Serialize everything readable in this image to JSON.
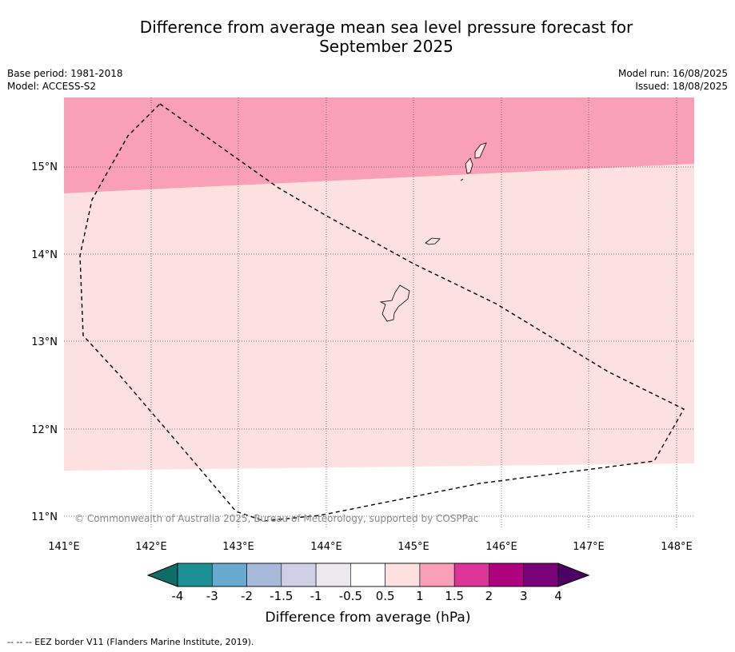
{
  "title_line1": "Difference from average mean sea level pressure forecast for",
  "title_line2": "September 2025",
  "base_period": "Base period: 1981-2018",
  "model": "Model: ACCESS-S2",
  "model_run": "Model run: 16/08/2025",
  "issued": "Issued: 18/08/2025",
  "copyright": "© Commonwealth of Australia 2025, Bureau of Meteorology, supported by COSPPac",
  "lon_ticks": [
    "141°E",
    "142°E",
    "143°E",
    "144°E",
    "145°E",
    "146°E",
    "147°E",
    "148°E"
  ],
  "lat_ticks": [
    "15°N",
    "14°N",
    "13°N",
    "12°N",
    "11°N"
  ],
  "colorbar": {
    "label": "Difference from average (hPa)",
    "ticks": [
      "-4",
      "-3",
      "-2",
      "-1.5",
      "-1",
      "-0.5",
      "0.5",
      "1",
      "1.5",
      "2",
      "3",
      "4"
    ],
    "colors": [
      "#1b9196",
      "#67a9cf",
      "#a6b9d9",
      "#cfd0e6",
      "#ebe9ee",
      "#ffffff",
      "#fde0e0",
      "#f9a0b8",
      "#dd3497",
      "#ae017e",
      "#7a0177"
    ],
    "under_color": "#0e6d66",
    "over_color": "#4d0066"
  },
  "map_fills": {
    "zone_1_to_1_5": "#f9a0b8",
    "zone_0_5_to_1": "#fde0e0",
    "zone_neutral": "#ffffff"
  },
  "legend_note": "--  --  -- EEZ border V11 (Flanders Marine Institute, 2019)."
}
